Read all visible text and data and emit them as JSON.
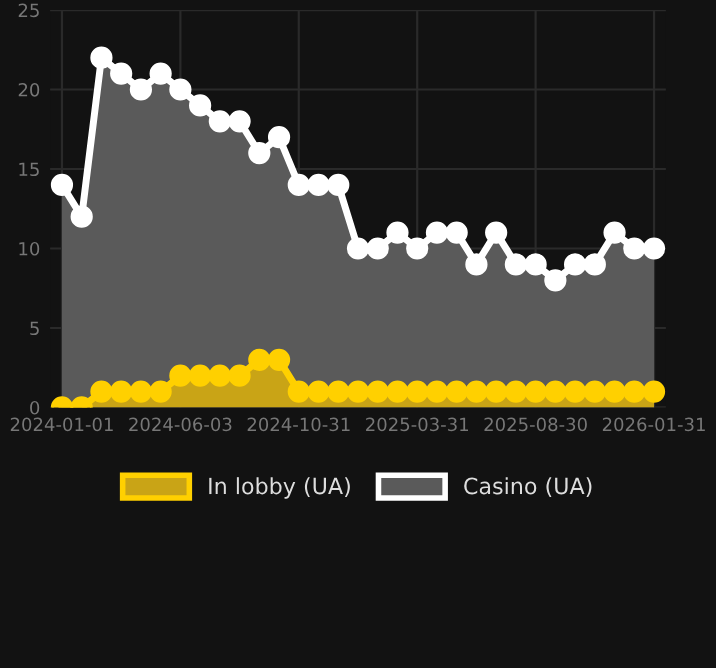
{
  "chart_data": {
    "type": "area",
    "categories": [
      "2024-01-01",
      null,
      null,
      null,
      null,
      null,
      "2024-06-03",
      null,
      null,
      null,
      null,
      null,
      "2024-10-31",
      null,
      null,
      null,
      null,
      null,
      "2025-03-31",
      null,
      null,
      null,
      null,
      null,
      "2025-08-30",
      null,
      null,
      null,
      null,
      null,
      "2026-01-31"
    ],
    "series": [
      {
        "name": "In lobby (UA)",
        "color": "#ffd000",
        "values": [
          0,
          0,
          1,
          1,
          1,
          1,
          2,
          2,
          2,
          2,
          3,
          3,
          1,
          1,
          1,
          1,
          1,
          1,
          1,
          1,
          1,
          1,
          1,
          1,
          1,
          1,
          1,
          1,
          1,
          1,
          1
        ]
      },
      {
        "name": "Casino (UA)",
        "color": "#ffffff",
        "values": [
          14,
          12,
          22,
          21,
          20,
          21,
          20,
          19,
          18,
          18,
          16,
          17,
          14,
          14,
          14,
          10,
          10,
          11,
          10,
          11,
          11,
          9,
          11,
          9,
          9,
          8,
          9,
          9,
          11,
          10,
          10
        ]
      }
    ],
    "ylim": [
      0,
      25
    ],
    "yticks": [
      0,
      5,
      10,
      15,
      20,
      25
    ],
    "grid": true,
    "legend": "bottom",
    "marker": "circle",
    "line_style": "solid"
  }
}
